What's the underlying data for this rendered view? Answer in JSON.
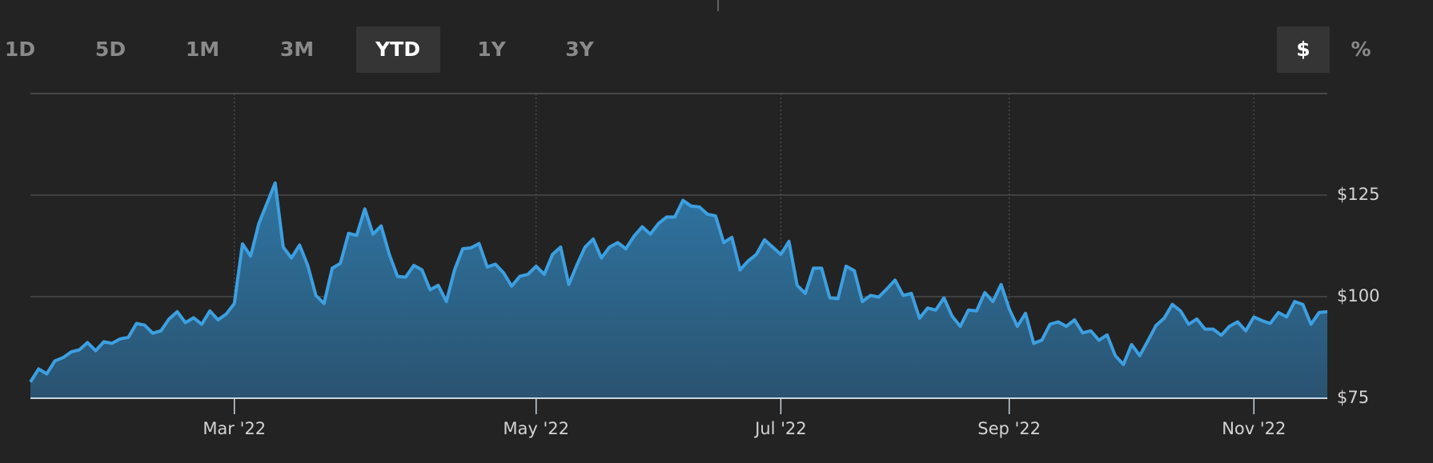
{
  "range_buttons": [
    "1D",
    "5D",
    "1M",
    "3M",
    "YTD",
    "1Y",
    "3Y"
  ],
  "active_range_index": 4,
  "unit_buttons": [
    "$",
    "%"
  ],
  "active_unit_index": 0,
  "chart_data": {
    "type": "area",
    "color": "#3d9fe0",
    "fill_top": "#2f75a3",
    "fill_bottom": "#2a5370",
    "grid": true,
    "ylim": [
      75,
      150
    ],
    "yticks": [
      {
        "value": 75,
        "label": "$75"
      },
      {
        "value": 100,
        "label": "$100"
      },
      {
        "value": 125,
        "label": "$125"
      }
    ],
    "categories": [
      null,
      null,
      null,
      null,
      null,
      null,
      null,
      null,
      null,
      null,
      null,
      null,
      null,
      null,
      null,
      null,
      null,
      null,
      null,
      null,
      null,
      null,
      null,
      null,
      null,
      "Mar '22",
      null,
      null,
      null,
      null,
      null,
      null,
      null,
      null,
      null,
      null,
      null,
      null,
      null,
      null,
      null,
      null,
      null,
      null,
      null,
      null,
      null,
      null,
      null,
      null,
      null,
      null,
      null,
      null,
      null,
      null,
      null,
      null,
      null,
      null,
      null,
      null,
      "May '22",
      null,
      null,
      null,
      null,
      null,
      null,
      null,
      null,
      null,
      null,
      null,
      null,
      null,
      null,
      null,
      null,
      null,
      null,
      null,
      null,
      null,
      null,
      null,
      null,
      null,
      null,
      null,
      null,
      null,
      "Jul '22",
      null,
      null,
      null,
      null,
      null,
      null,
      null,
      null,
      null,
      null,
      null,
      null,
      null,
      null,
      null,
      null,
      null,
      null,
      null,
      null,
      null,
      null,
      null,
      null,
      null,
      null,
      null,
      "Sep '22",
      null,
      null,
      null,
      null,
      null,
      null,
      null,
      null,
      null,
      null,
      null,
      null,
      null,
      null,
      null,
      null,
      null,
      null,
      null,
      null,
      null,
      null,
      null,
      null,
      null,
      null,
      null,
      null,
      null,
      "Nov '22",
      null,
      null,
      null,
      null,
      null,
      null,
      null,
      null,
      null
    ],
    "values": [
      79,
      82.2,
      81,
      84.2,
      85,
      86.4,
      86.9,
      88.7,
      86.7,
      88.9,
      88.5,
      89.6,
      90,
      93.4,
      93,
      91,
      91.6,
      94.5,
      96.3,
      93.6,
      94.8,
      93.2,
      96.5,
      94.3,
      95.7,
      98.3,
      113,
      110,
      118,
      123,
      128,
      112.2,
      109.5,
      112.7,
      107.7,
      100.3,
      98.3,
      107,
      108.2,
      115.6,
      115.1,
      121.6,
      115.4,
      117.4,
      110.4,
      105,
      104.8,
      107.7,
      106.6,
      101.7,
      102.8,
      98.8,
      106.6,
      111.8,
      112,
      113.1,
      107.3,
      108,
      105.9,
      102.6,
      105,
      105.5,
      107.5,
      105.5,
      110.4,
      112.2,
      103,
      107.8,
      112.2,
      114.2,
      109.5,
      112.2,
      113.3,
      111.8,
      114.9,
      117.2,
      115.4,
      118,
      119.6,
      119.6,
      123.7,
      122.3,
      122.1,
      120.3,
      119.9,
      113.3,
      114.6,
      106.6,
      108.8,
      110.4,
      114,
      112.2,
      110.4,
      113.6,
      102.8,
      100.8,
      107,
      107,
      99.7,
      99.5,
      107.5,
      106.4,
      98.8,
      100.3,
      99.9,
      101.9,
      104.1,
      100.3,
      100.8,
      94.7,
      97.2,
      96.7,
      99.7,
      95.2,
      92.7,
      96.7,
      96.5,
      101,
      98.8,
      103,
      97,
      92.7,
      95.9,
      88.5,
      89.3,
      93.2,
      93.8,
      92.7,
      94.3,
      91.1,
      91.6,
      89.3,
      90.6,
      85.5,
      83.3,
      88.2,
      85.5,
      89.1,
      92.9,
      94.7,
      98.1,
      96.5,
      93.2,
      94.5,
      92,
      92,
      90.5,
      92.7,
      93.8,
      91.6,
      95,
      94.1,
      93.4,
      96.1,
      95,
      98.8,
      98.1,
      93.2,
      96.1,
      96.3
    ]
  }
}
